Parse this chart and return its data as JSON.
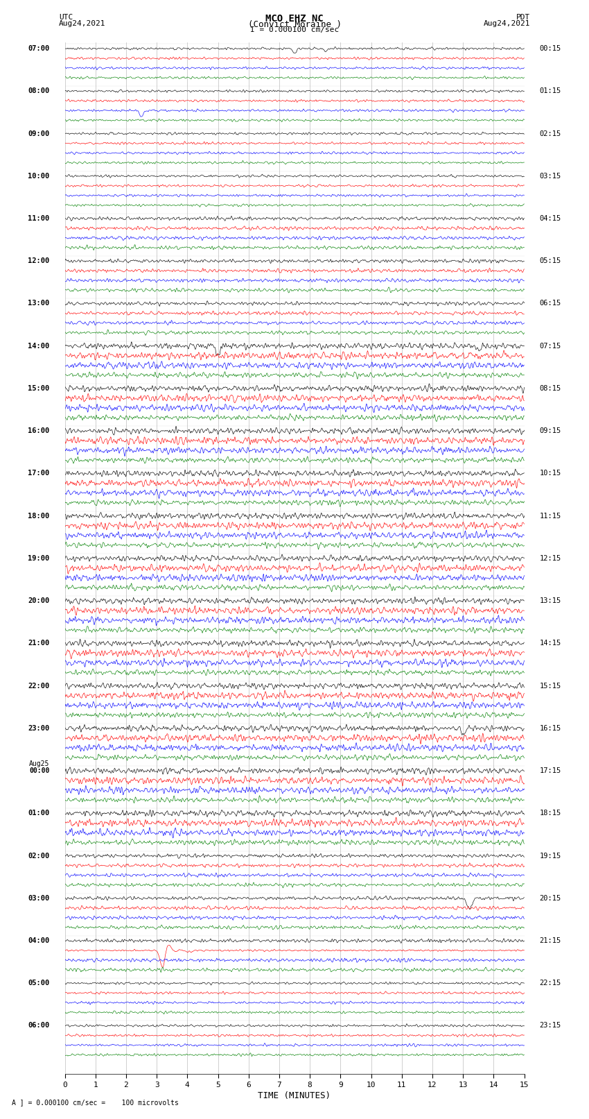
{
  "title_line1": "MCO EHZ NC",
  "title_line2": "(Convict Moraine )",
  "scale_label": "I = 0.000100 cm/sec",
  "left_label_top": "UTC",
  "left_label_date": "Aug24,2021",
  "right_label_top": "PDT",
  "right_label_date": "Aug24,2021",
  "bottom_label": "TIME (MINUTES)",
  "footer_label": "A ] = 0.000100 cm/sec =    100 microvolts",
  "xlabel_ticks": [
    0,
    1,
    2,
    3,
    4,
    5,
    6,
    7,
    8,
    9,
    10,
    11,
    12,
    13,
    14,
    15
  ],
  "background_color": "#ffffff",
  "trace_colors": [
    "black",
    "red",
    "blue",
    "green"
  ],
  "utc_labels": [
    [
      "07:00",
      0
    ],
    [
      "08:00",
      1
    ],
    [
      "09:00",
      2
    ],
    [
      "10:00",
      3
    ],
    [
      "11:00",
      4
    ],
    [
      "12:00",
      5
    ],
    [
      "13:00",
      6
    ],
    [
      "14:00",
      7
    ],
    [
      "15:00",
      8
    ],
    [
      "16:00",
      9
    ],
    [
      "17:00",
      10
    ],
    [
      "18:00",
      11
    ],
    [
      "19:00",
      12
    ],
    [
      "20:00",
      13
    ],
    [
      "21:00",
      14
    ],
    [
      "22:00",
      15
    ],
    [
      "23:00",
      16
    ],
    [
      "Aug25",
      17
    ],
    [
      "00:00",
      17
    ],
    [
      "01:00",
      18
    ],
    [
      "02:00",
      19
    ],
    [
      "03:00",
      20
    ],
    [
      "04:00",
      21
    ],
    [
      "05:00",
      22
    ],
    [
      "06:00",
      23
    ]
  ],
  "pdt_labels": [
    [
      "00:15",
      0
    ],
    [
      "01:15",
      1
    ],
    [
      "02:15",
      2
    ],
    [
      "03:15",
      3
    ],
    [
      "04:15",
      4
    ],
    [
      "05:15",
      5
    ],
    [
      "06:15",
      6
    ],
    [
      "07:15",
      7
    ],
    [
      "08:15",
      8
    ],
    [
      "09:15",
      9
    ],
    [
      "10:15",
      10
    ],
    [
      "11:15",
      11
    ],
    [
      "12:15",
      12
    ],
    [
      "13:15",
      13
    ],
    [
      "14:15",
      14
    ],
    [
      "15:15",
      15
    ],
    [
      "16:15",
      16
    ],
    [
      "17:15",
      17
    ],
    [
      "18:15",
      18
    ],
    [
      "19:15",
      19
    ],
    [
      "20:15",
      20
    ],
    [
      "21:15",
      21
    ],
    [
      "22:15",
      22
    ],
    [
      "23:15",
      23
    ]
  ],
  "n_hour_blocks": 24,
  "noise_seed": 42
}
